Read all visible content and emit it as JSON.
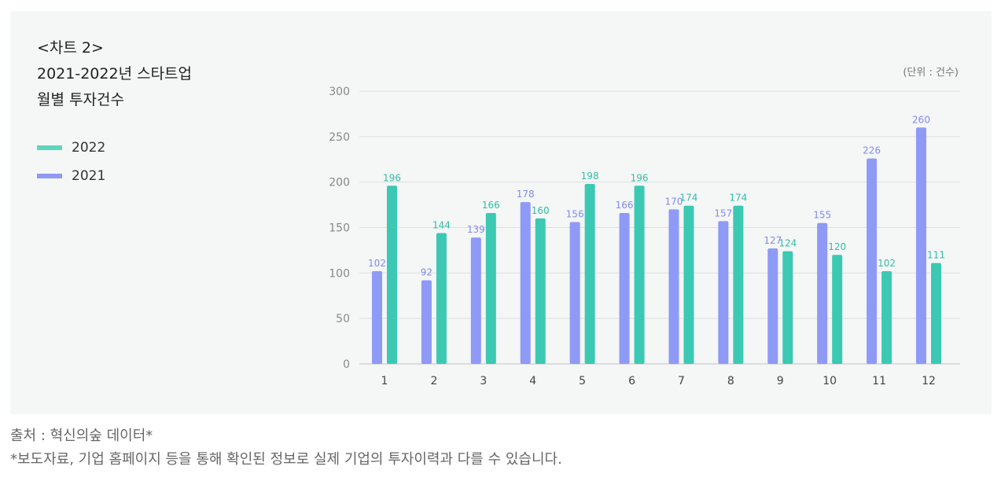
{
  "header": {
    "title_lines": [
      "<차트 2>",
      "2021-2022년 스타트업",
      "월별 투자건수"
    ],
    "unit_label": "(단위 : 건수)"
  },
  "legend": [
    {
      "label": "2022",
      "color": "#5dd6bd"
    },
    {
      "label": "2021",
      "color": "#8e9af5"
    }
  ],
  "chart_data": {
    "type": "bar",
    "categories": [
      "1",
      "2",
      "3",
      "4",
      "5",
      "6",
      "7",
      "8",
      "9",
      "10",
      "11",
      "12"
    ],
    "series": [
      {
        "name": "2021",
        "color": "#8e9af5",
        "label_color": "#7f8cf0",
        "values": [
          102,
          92,
          139,
          178,
          156,
          166,
          170,
          157,
          127,
          155,
          226,
          260
        ]
      },
      {
        "name": "2022",
        "color": "#3cc9b3",
        "label_color": "#2fbfa7",
        "values": [
          196,
          144,
          166,
          160,
          198,
          196,
          174,
          174,
          124,
          120,
          102,
          111
        ]
      }
    ],
    "y_ticks": [
      "0",
      "50",
      "100",
      "150",
      "200",
      "250",
      "300"
    ],
    "ylim": [
      0,
      300
    ],
    "grid": true
  },
  "footer": {
    "source": "출처 : 혁신의숲 데이터*",
    "note": "*보도자료, 기업 홈페이지 등을 통해 확인된 정보로 실제 기업의 투자이력과 다를 수 있습니다."
  }
}
